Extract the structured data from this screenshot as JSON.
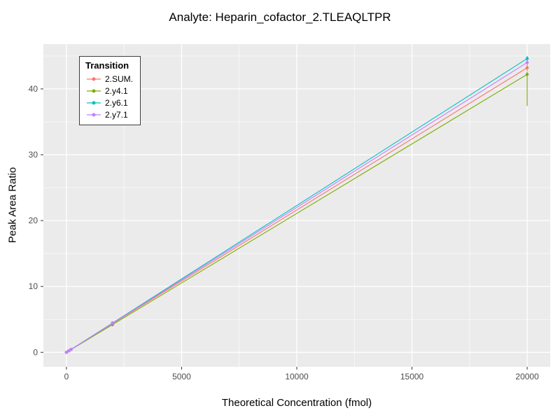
{
  "chart_data": {
    "type": "line",
    "title": "Analyte: Heparin_cofactor_2.TLEAQLTPR",
    "xlabel": "Theoretical Concentration (fmol)",
    "ylabel": "Peak Area Ratio",
    "xlim": [
      -1000,
      21000
    ],
    "ylim": [
      -2.2,
      46.8
    ],
    "x_ticks": [
      0,
      5000,
      10000,
      15000,
      20000
    ],
    "x_minor_ticks": [
      2500,
      7500,
      12500,
      17500
    ],
    "y_ticks": [
      0,
      10,
      20,
      30,
      40
    ],
    "y_minor_ticks": [
      5,
      15,
      25,
      35,
      45
    ],
    "grid": true,
    "legend_title": "Transition",
    "legend_position": "top-left-inside",
    "panel_bg": "#EBEBEB",
    "grid_color": "#FFFFFF",
    "tick_color": "#333333",
    "tick_label_color": "#4D4D4D",
    "series": [
      {
        "name": "2.SUM.",
        "color": "#F8766D",
        "points": [
          {
            "x": 0,
            "y": 0.0
          },
          {
            "x": 100,
            "y": 0.22
          },
          {
            "x": 200,
            "y": 0.43
          },
          {
            "x": 2000,
            "y": 4.35,
            "ylo": 4.0,
            "yhi": 4.7
          },
          {
            "x": 20000,
            "y": 43.2,
            "ylo": 42.7,
            "yhi": 43.7
          }
        ]
      },
      {
        "name": "2.y4.1",
        "color": "#7CAE00",
        "points": [
          {
            "x": 0,
            "y": 0.0
          },
          {
            "x": 100,
            "y": 0.21
          },
          {
            "x": 200,
            "y": 0.42
          },
          {
            "x": 2000,
            "y": 4.2
          },
          {
            "x": 20000,
            "y": 42.2,
            "ylo": 37.4,
            "yhi": 42.6
          }
        ]
      },
      {
        "name": "2.y6.1",
        "color": "#00BFC4",
        "points": [
          {
            "x": 0,
            "y": 0.0
          },
          {
            "x": 100,
            "y": 0.22
          },
          {
            "x": 200,
            "y": 0.45
          },
          {
            "x": 2000,
            "y": 4.45
          },
          {
            "x": 20000,
            "y": 44.6,
            "ylo": 44.1,
            "yhi": 45.0
          }
        ]
      },
      {
        "name": "2.y7.1",
        "color": "#C77CFF",
        "points": [
          {
            "x": 0,
            "y": 0.0
          },
          {
            "x": 100,
            "y": 0.22
          },
          {
            "x": 200,
            "y": 0.44
          },
          {
            "x": 2000,
            "y": 4.4
          },
          {
            "x": 20000,
            "y": 44.0,
            "ylo": 43.6,
            "yhi": 44.4
          }
        ]
      }
    ]
  }
}
